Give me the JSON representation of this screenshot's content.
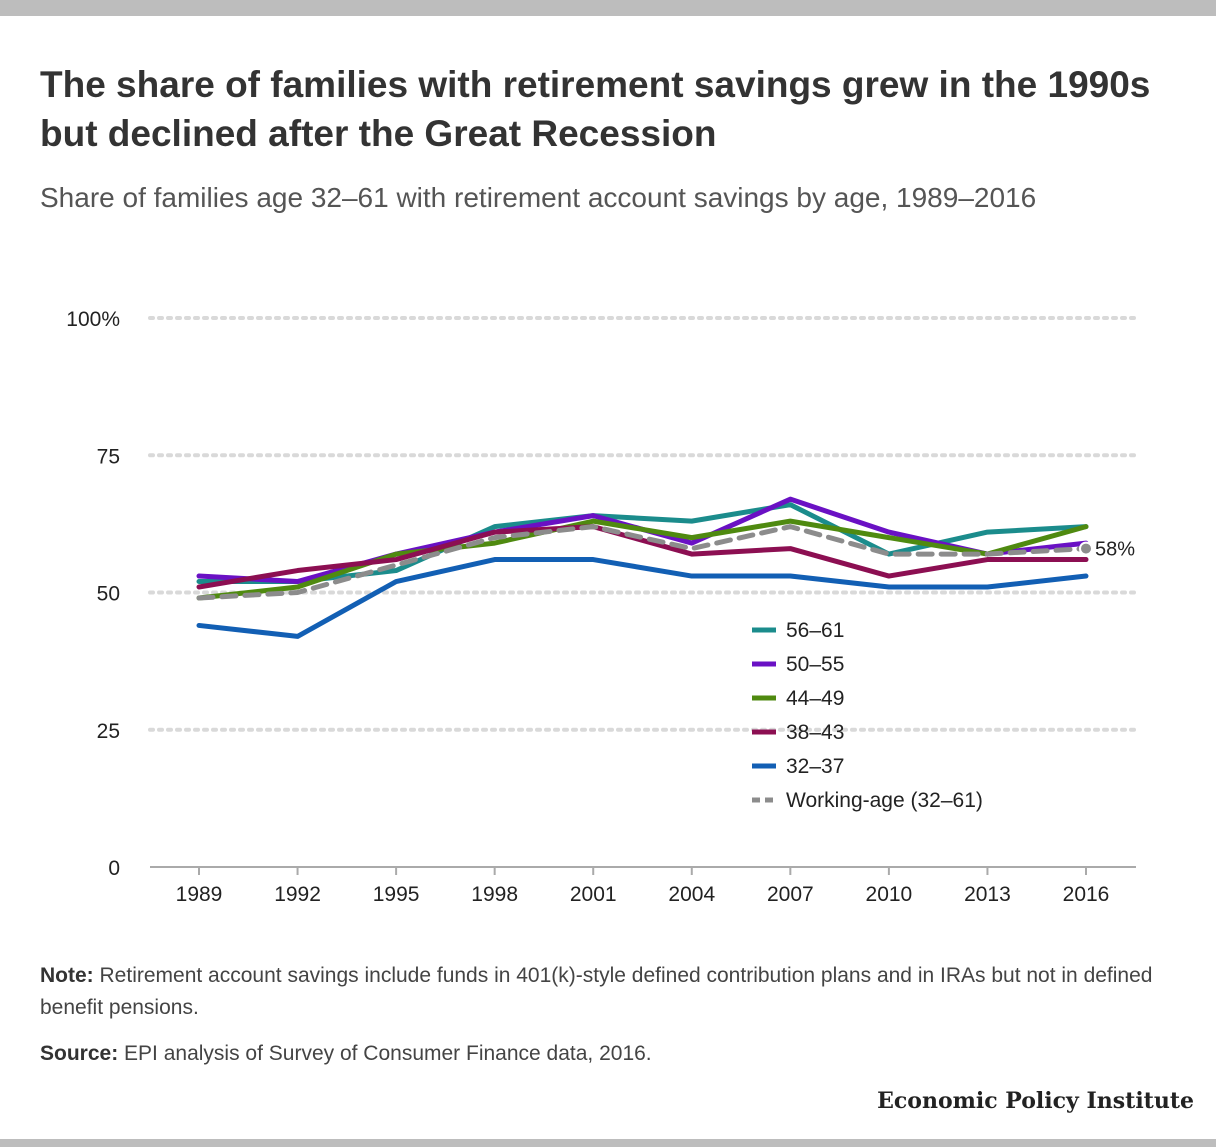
{
  "title": "The share of families with retirement savings grew in the 1990s but declined after the Great Recession",
  "subtitle": "Share of families age 32–61 with retirement account savings by age, 1989–2016",
  "chart_data": {
    "type": "line",
    "x": [
      "1989",
      "1992",
      "1995",
      "1998",
      "2001",
      "2004",
      "2007",
      "2010",
      "2013",
      "2016"
    ],
    "ylim": [
      0,
      100
    ],
    "yticks": [
      0,
      25,
      50,
      75,
      100
    ],
    "ytick_labels": [
      "0",
      "25",
      "50",
      "75",
      "100%"
    ],
    "grid": true,
    "legend_position": "center-right",
    "series": [
      {
        "name": "56–61",
        "color": "#1b8c8c",
        "dashed": false,
        "values": [
          52,
          52,
          54,
          62,
          64,
          63,
          66,
          57,
          61,
          62
        ]
      },
      {
        "name": "50–55",
        "color": "#6a11c4",
        "dashed": false,
        "values": [
          53,
          52,
          57,
          61,
          64,
          59,
          67,
          61,
          57,
          59
        ]
      },
      {
        "name": "44–49",
        "color": "#4f8a10",
        "dashed": false,
        "values": [
          49,
          51,
          57,
          59,
          63,
          60,
          63,
          60,
          57,
          62
        ]
      },
      {
        "name": "38–43",
        "color": "#8c0f52",
        "dashed": false,
        "values": [
          51,
          54,
          56,
          61,
          62,
          57,
          58,
          53,
          56,
          56
        ]
      },
      {
        "name": "32–37",
        "color": "#125fb4",
        "dashed": false,
        "values": [
          44,
          42,
          52,
          56,
          56,
          53,
          53,
          51,
          51,
          53
        ]
      },
      {
        "name": "Working-age (32–61)",
        "color": "#8c8c8c",
        "dashed": true,
        "values": [
          49,
          50,
          55,
          60,
          62,
          58,
          62,
          57,
          57,
          58
        ]
      }
    ],
    "end_label": "58%"
  },
  "note": {
    "label": "Note:",
    "text": "Retirement account savings include funds in 401(k)-style defined contribution plans and in IRAs but not in defined benefit pensions."
  },
  "source": {
    "label": "Source:",
    "text": "EPI analysis of Survey of Consumer Finance data, 2016."
  },
  "brand": "Economic Policy Institute"
}
